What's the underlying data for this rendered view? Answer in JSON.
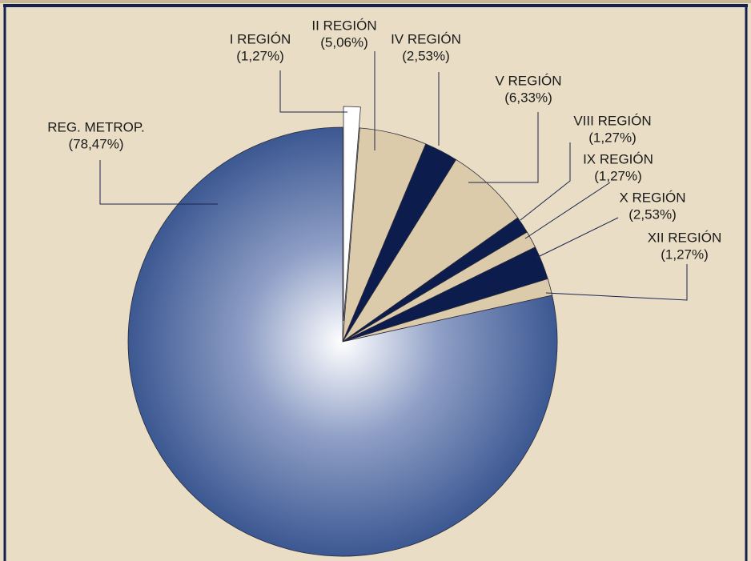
{
  "chart_data": {
    "type": "pie",
    "categories": [
      "I REGIÓN",
      "II REGIÓN",
      "IV REGIÓN",
      "V REGIÓN",
      "VIII REGIÓN",
      "IX REGIÓN",
      "X REGIÓN",
      "XII REGIÓN",
      "REG. METROP."
    ],
    "values": [
      1.27,
      5.06,
      2.53,
      6.33,
      1.27,
      1.27,
      2.53,
      1.27,
      78.47
    ],
    "value_labels": [
      "(1,27%)",
      "(5,06%)",
      "(2,53%)",
      "(6,33%)",
      "(1,27%)",
      "(1,27%)",
      "(2,53%)",
      "(1,27%)",
      "(78,47%)"
    ],
    "colors": [
      "#ffffff",
      "#dccbab",
      "#0c1c4c",
      "#dccbab",
      "#0c1c4c",
      "#dccbab",
      "#0c1c4c",
      "#dccbab",
      "#3c5892"
    ]
  }
}
